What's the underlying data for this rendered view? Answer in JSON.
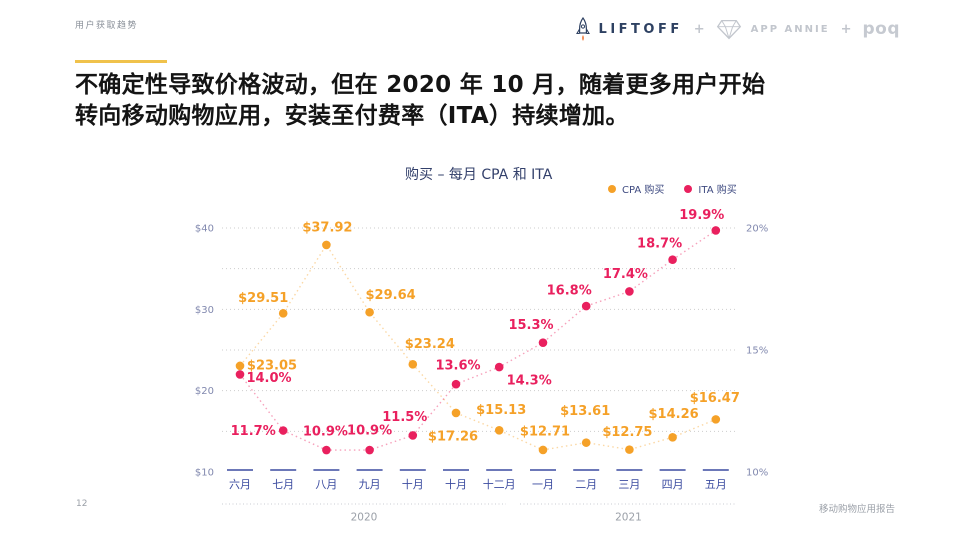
{
  "page": {
    "eyebrow": "用户获取趋势",
    "page_number": "12",
    "footer_label": "移动购物应用报告"
  },
  "logos": {
    "liftoff": "LIFTOFF",
    "plus_1": "+",
    "app_annie": "APP ANNIE",
    "plus_2": "+",
    "poq": "poq",
    "liftoff_color": "#2E4162",
    "partner_color": "#C2C6CD",
    "rocket_flame_color": "#F07A3C"
  },
  "accent_color": "#F0C24B",
  "headline": "不确定性导致价格波动，但在 2020 年 10 月，随着更多用户开始\n转向移动购物应用，安装至付费率（ITA）持续增加。",
  "chart_data": {
    "type": "line",
    "title": "购买 – 每月 CPA 和 ITA",
    "legend_position": "top-right",
    "grid": "dotted-horizontal",
    "categories": [
      "六月",
      "七月",
      "八月",
      "九月",
      "十月",
      "十月",
      "十二月",
      "一月",
      "二月",
      "三月",
      "四月",
      "五月"
    ],
    "year_groups": [
      {
        "label": "2020",
        "from": 0,
        "to": 6
      },
      {
        "label": "2021",
        "from": 7,
        "to": 11
      }
    ],
    "left_axis": {
      "range": [
        10,
        40
      ],
      "ticks": [
        {
          "label": "$40",
          "value": 40
        },
        {
          "label": "$30",
          "value": 30
        },
        {
          "label": "$20",
          "value": 20
        },
        {
          "label": "$10",
          "value": 10
        }
      ]
    },
    "right_axis": {
      "range": [
        10,
        20
      ],
      "ticks": [
        {
          "label": "20%",
          "value": 20
        },
        {
          "label": "15%",
          "value": 15
        },
        {
          "label": "10%",
          "value": 10
        }
      ]
    },
    "series": [
      {
        "name": "CPA 购买",
        "axis": "left",
        "color": "#F5A128",
        "values": [
          23.05,
          29.51,
          37.92,
          29.64,
          23.24,
          17.26,
          15.13,
          12.71,
          13.61,
          12.75,
          14.26,
          16.47
        ],
        "labels": [
          "$23.05",
          "$29.51",
          "$37.92",
          "$29.64",
          "$23.24",
          "$17.26",
          "$15.13",
          "$12.71",
          "$13.61",
          "$12.75",
          "$14.26",
          "$16.47"
        ]
      },
      {
        "name": "ITA 购买",
        "axis": "right",
        "color": "#E9205E",
        "values": [
          14.0,
          11.7,
          10.9,
          10.9,
          11.5,
          13.6,
          14.3,
          15.3,
          16.8,
          17.4,
          18.7,
          19.9
        ],
        "labels": [
          "14.0%",
          "11.7%",
          "10.9%",
          "10.9%",
          "11.5%",
          "13.6%",
          "14.3%",
          "15.3%",
          "16.8%",
          "17.4%",
          "18.7%",
          "19.9%"
        ]
      }
    ]
  }
}
